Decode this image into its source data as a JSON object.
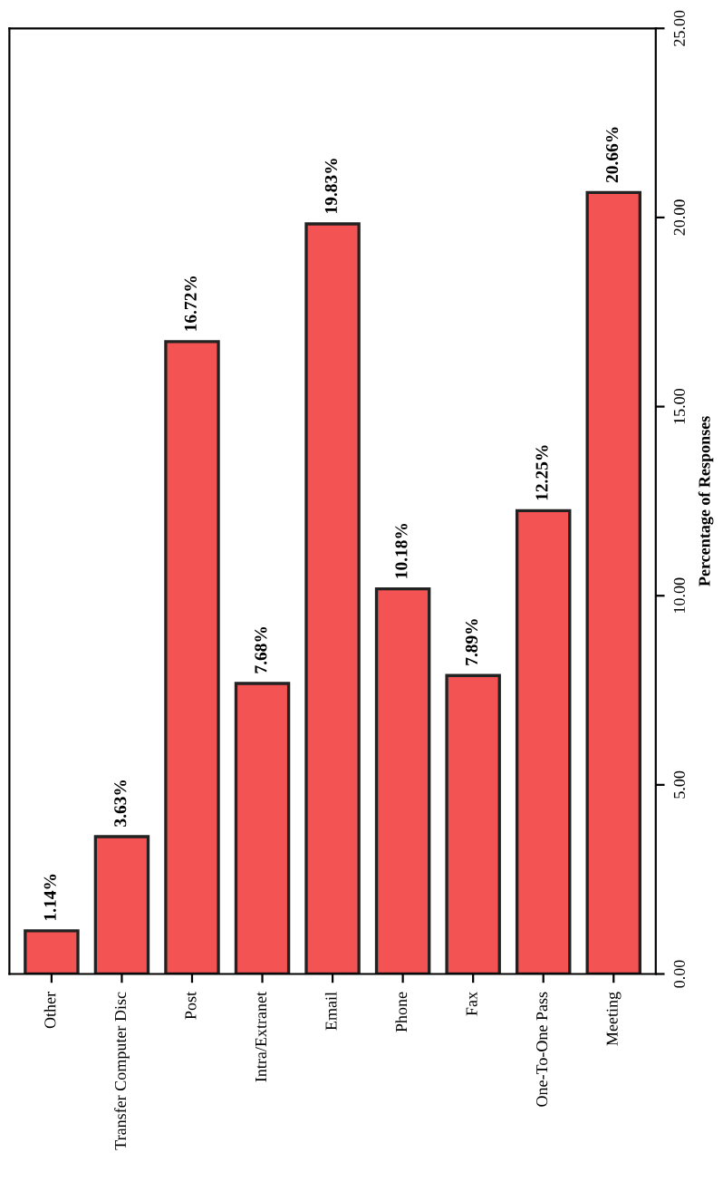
{
  "chart_data": {
    "type": "bar",
    "categories": [
      "Other",
      "Transfer Computer Disc",
      "Post",
      "Intra/Extranet",
      "Email",
      "Phone",
      "Fax",
      "One-To-One Pass",
      "Meeting"
    ],
    "values": [
      1.14,
      3.63,
      16.72,
      7.68,
      19.83,
      10.18,
      7.89,
      12.25,
      20.66
    ],
    "value_labels": [
      "1.14%",
      "3.63%",
      "16.72%",
      "7.68%",
      "19.83%",
      "10.18%",
      "7.89%",
      "12.25%",
      "20.66%"
    ],
    "color": "#f45353",
    "ylabel": "Percentage of Responses",
    "ylim": [
      0,
      25
    ],
    "yticks": [
      {
        "value": 0,
        "label": "0.00"
      },
      {
        "value": 5,
        "label": "5.00"
      },
      {
        "value": 10,
        "label": "10.00"
      },
      {
        "value": 15,
        "label": "15.00"
      },
      {
        "value": 20,
        "label": "20.00"
      },
      {
        "value": 25,
        "label": "25.00"
      }
    ],
    "grid": false
  }
}
